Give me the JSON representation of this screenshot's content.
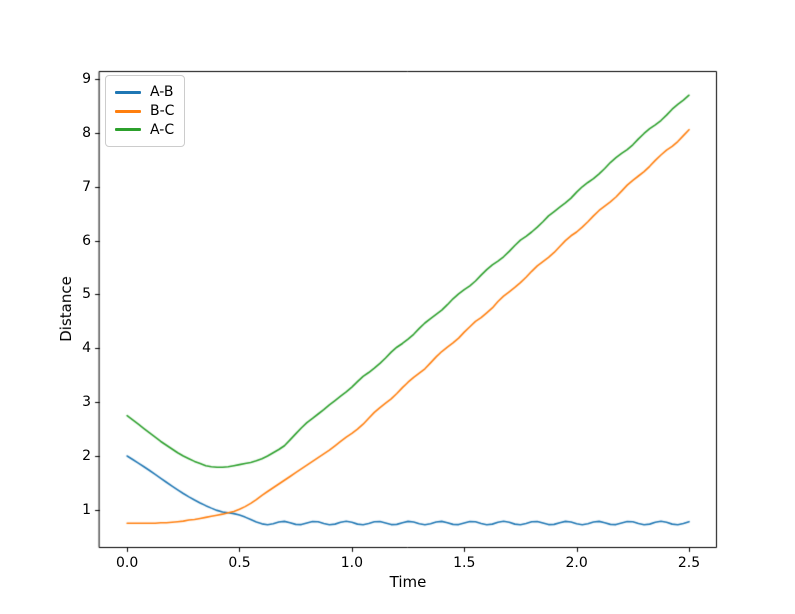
{
  "figure": {
    "background": "#ffffff",
    "frame_color": "#000000",
    "tick_color": "#000000",
    "legend_border_color": "#cccccc"
  },
  "chart_data": {
    "type": "line",
    "title": "",
    "xlabel": "Time",
    "ylabel": "Distance",
    "xlim": [
      -0.125,
      2.62
    ],
    "ylim": [
      0.31,
      9.15
    ],
    "grid": false,
    "legend_position": "upper-left",
    "x_tick_values": [
      0.0,
      0.5,
      1.0,
      1.5,
      2.0,
      2.5
    ],
    "x_tick_labels": [
      "0.0",
      "0.5",
      "1.0",
      "1.5",
      "2.0",
      "2.5"
    ],
    "y_tick_values": [
      1,
      2,
      3,
      4,
      5,
      6,
      7,
      8,
      9
    ],
    "y_tick_labels": [
      "1",
      "2",
      "3",
      "4",
      "5",
      "6",
      "7",
      "8",
      "9"
    ],
    "x_start": 0,
    "x_step": 0.025,
    "x_end": 2.5,
    "series": [
      {
        "name": "A-B",
        "color": "#1f77b4",
        "values": [
          2.0,
          1.935,
          1.868,
          1.8,
          1.73,
          1.658,
          1.585,
          1.512,
          1.44,
          1.37,
          1.303,
          1.24,
          1.182,
          1.128,
          1.078,
          1.032,
          0.99,
          0.96,
          0.945,
          0.93,
          0.905,
          0.865,
          0.82,
          0.775,
          0.74,
          0.723,
          0.741,
          0.775,
          0.786,
          0.762,
          0.73,
          0.726,
          0.755,
          0.784,
          0.78,
          0.748,
          0.724,
          0.735,
          0.769,
          0.787,
          0.769,
          0.735,
          0.724,
          0.748,
          0.78,
          0.784,
          0.755,
          0.726,
          0.73,
          0.762,
          0.786,
          0.775,
          0.741,
          0.723,
          0.741,
          0.775,
          0.786,
          0.762,
          0.73,
          0.726,
          0.755,
          0.784,
          0.78,
          0.748,
          0.724,
          0.735,
          0.769,
          0.787,
          0.769,
          0.735,
          0.724,
          0.748,
          0.78,
          0.784,
          0.755,
          0.726,
          0.73,
          0.762,
          0.786,
          0.775,
          0.741,
          0.723,
          0.741,
          0.775,
          0.786,
          0.762,
          0.73,
          0.726,
          0.755,
          0.784,
          0.78,
          0.748,
          0.724,
          0.735,
          0.769,
          0.787,
          0.769,
          0.735,
          0.724,
          0.748,
          0.78
        ]
      },
      {
        "name": "B-C",
        "color": "#ff7f0e",
        "values": [
          0.75,
          0.75,
          0.75,
          0.75,
          0.75,
          0.75,
          0.76,
          0.76,
          0.77,
          0.78,
          0.79,
          0.81,
          0.82,
          0.84,
          0.86,
          0.88,
          0.9,
          0.92,
          0.945,
          0.97,
          1.01,
          1.06,
          1.12,
          1.19,
          1.27,
          1.34,
          1.41,
          1.48,
          1.55,
          1.62,
          1.69,
          1.76,
          1.83,
          1.9,
          1.97,
          2.04,
          2.11,
          2.19,
          2.27,
          2.35,
          2.42,
          2.5,
          2.59,
          2.7,
          2.81,
          2.9,
          2.98,
          3.06,
          3.16,
          3.27,
          3.37,
          3.46,
          3.54,
          3.62,
          3.73,
          3.84,
          3.94,
          4.02,
          4.1,
          4.19,
          4.3,
          4.4,
          4.5,
          4.57,
          4.66,
          4.75,
          4.87,
          4.97,
          5.05,
          5.13,
          5.22,
          5.32,
          5.43,
          5.53,
          5.61,
          5.69,
          5.78,
          5.89,
          6.0,
          6.09,
          6.16,
          6.25,
          6.35,
          6.46,
          6.56,
          6.64,
          6.72,
          6.81,
          6.92,
          7.03,
          7.12,
          7.2,
          7.28,
          7.38,
          7.49,
          7.59,
          7.68,
          7.75,
          7.84,
          7.95,
          8.06
        ]
      },
      {
        "name": "A-C",
        "color": "#2ca02c",
        "values": [
          2.75,
          2.67,
          2.59,
          2.51,
          2.43,
          2.35,
          2.27,
          2.2,
          2.13,
          2.06,
          2.0,
          1.95,
          1.9,
          1.86,
          1.82,
          1.8,
          1.79,
          1.79,
          1.8,
          1.82,
          1.84,
          1.86,
          1.88,
          1.91,
          1.95,
          2.0,
          2.06,
          2.12,
          2.19,
          2.3,
          2.41,
          2.52,
          2.62,
          2.7,
          2.78,
          2.86,
          2.95,
          3.03,
          3.11,
          3.19,
          3.28,
          3.38,
          3.48,
          3.55,
          3.63,
          3.72,
          3.82,
          3.93,
          4.02,
          4.09,
          4.17,
          4.26,
          4.37,
          4.47,
          4.55,
          4.63,
          4.71,
          4.81,
          4.92,
          5.01,
          5.09,
          5.16,
          5.25,
          5.36,
          5.46,
          5.55,
          5.62,
          5.7,
          5.8,
          5.91,
          6.01,
          6.08,
          6.16,
          6.25,
          6.35,
          6.46,
          6.54,
          6.62,
          6.7,
          6.79,
          6.9,
          7.0,
          7.08,
          7.15,
          7.24,
          7.34,
          7.45,
          7.54,
          7.62,
          7.69,
          7.78,
          7.89,
          7.99,
          8.08,
          8.15,
          8.23,
          8.33,
          8.44,
          8.53,
          8.61,
          8.7
        ]
      }
    ]
  }
}
